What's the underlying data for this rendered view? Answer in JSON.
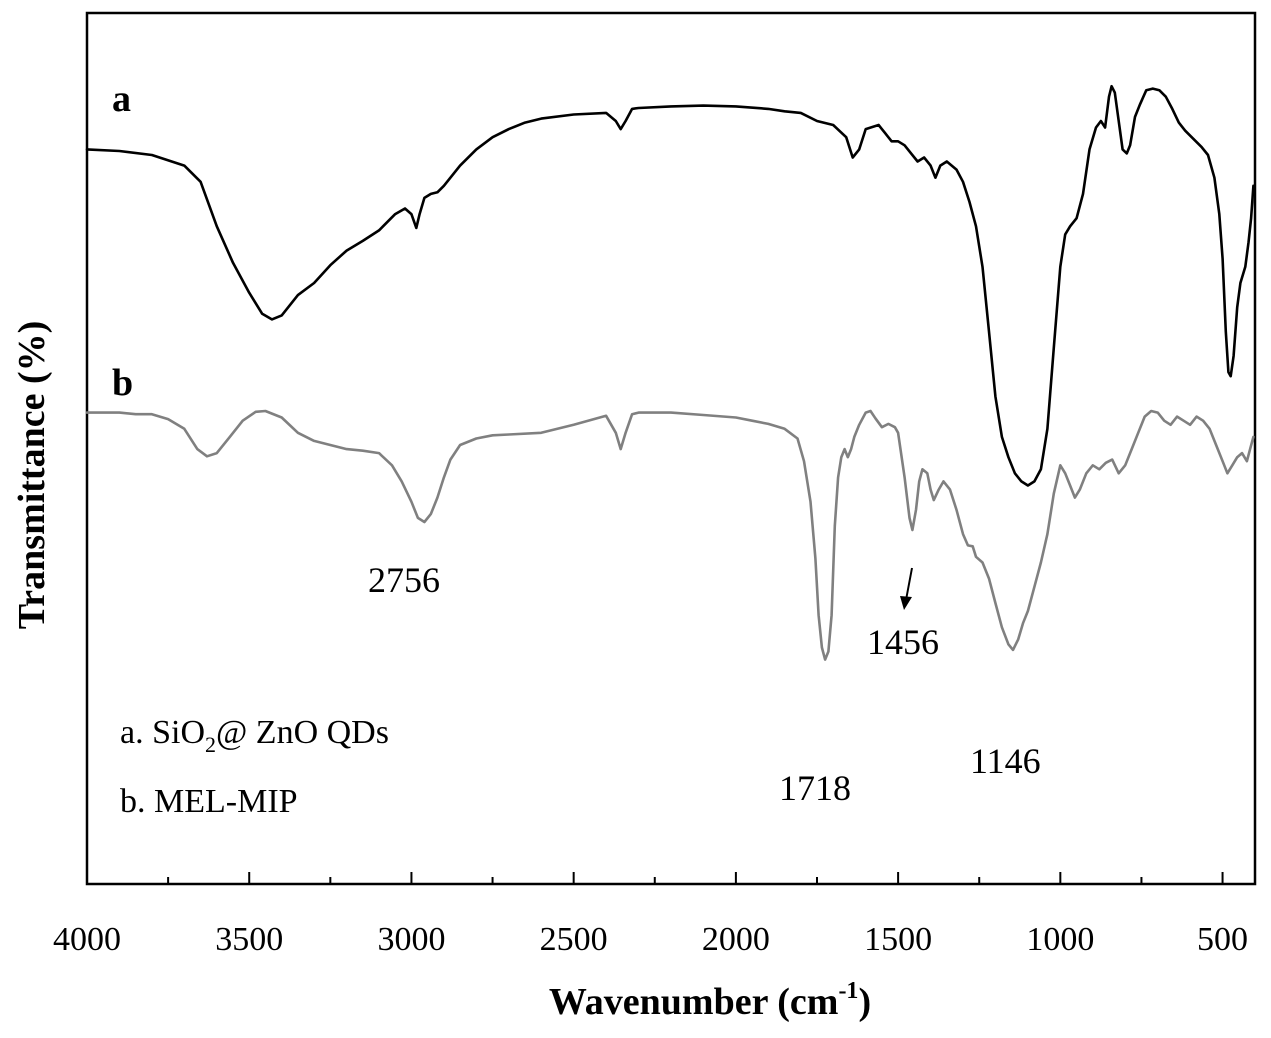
{
  "chart_data": {
    "type": "line",
    "xlabel": "Wavenumber (cm",
    "xlabel_sup": "-1",
    "xlabel_close": ")",
    "ylabel": "Transmittance (%)",
    "xlim": [
      4000,
      400
    ],
    "x_reversed": true,
    "ylim": [
      0,
      100
    ],
    "x_ticks": [
      4000,
      3500,
      3000,
      2500,
      2000,
      1500,
      1000,
      500
    ],
    "y_ticks_labeled": false,
    "grid": false,
    "series": [
      {
        "tag": "a",
        "color": "#000000",
        "points": [
          [
            4000,
            86.5
          ],
          [
            3900,
            86.3
          ],
          [
            3800,
            85.8
          ],
          [
            3700,
            84.5
          ],
          [
            3650,
            82.5
          ],
          [
            3600,
            77
          ],
          [
            3550,
            72.5
          ],
          [
            3500,
            68.8
          ],
          [
            3460,
            66.2
          ],
          [
            3430,
            65.5
          ],
          [
            3400,
            66
          ],
          [
            3350,
            68.5
          ],
          [
            3300,
            70
          ],
          [
            3250,
            72.2
          ],
          [
            3200,
            74
          ],
          [
            3150,
            75.2
          ],
          [
            3100,
            76.5
          ],
          [
            3050,
            78.5
          ],
          [
            3020,
            79.2
          ],
          [
            3000,
            78.5
          ],
          [
            2985,
            76.8
          ],
          [
            2975,
            78.5
          ],
          [
            2960,
            80.5
          ],
          [
            2940,
            81
          ],
          [
            2920,
            81.2
          ],
          [
            2900,
            82
          ],
          [
            2880,
            83
          ],
          [
            2850,
            84.5
          ],
          [
            2800,
            86.5
          ],
          [
            2750,
            88
          ],
          [
            2700,
            89
          ],
          [
            2650,
            89.8
          ],
          [
            2600,
            90.3
          ],
          [
            2500,
            90.8
          ],
          [
            2400,
            91
          ],
          [
            2370,
            90
          ],
          [
            2355,
            89
          ],
          [
            2340,
            90
          ],
          [
            2320,
            91.5
          ],
          [
            2300,
            91.6
          ],
          [
            2200,
            91.8
          ],
          [
            2100,
            91.9
          ],
          [
            2000,
            91.8
          ],
          [
            1900,
            91.5
          ],
          [
            1850,
            91.2
          ],
          [
            1800,
            91
          ],
          [
            1750,
            90
          ],
          [
            1700,
            89.5
          ],
          [
            1660,
            88
          ],
          [
            1640,
            85.5
          ],
          [
            1620,
            86.5
          ],
          [
            1600,
            89
          ],
          [
            1560,
            89.5
          ],
          [
            1540,
            88.5
          ],
          [
            1520,
            87.5
          ],
          [
            1500,
            87.5
          ],
          [
            1480,
            87
          ],
          [
            1460,
            86
          ],
          [
            1440,
            85
          ],
          [
            1420,
            85.5
          ],
          [
            1400,
            84.5
          ],
          [
            1385,
            83
          ],
          [
            1370,
            84.5
          ],
          [
            1350,
            85
          ],
          [
            1320,
            84
          ],
          [
            1300,
            82.5
          ],
          [
            1280,
            80
          ],
          [
            1260,
            77
          ],
          [
            1240,
            72
          ],
          [
            1220,
            64
          ],
          [
            1200,
            56
          ],
          [
            1180,
            51
          ],
          [
            1160,
            48.5
          ],
          [
            1140,
            46.5
          ],
          [
            1120,
            45.5
          ],
          [
            1100,
            45
          ],
          [
            1080,
            45.5
          ],
          [
            1060,
            47
          ],
          [
            1040,
            52
          ],
          [
            1020,
            62
          ],
          [
            1000,
            72
          ],
          [
            985,
            76
          ],
          [
            970,
            77
          ],
          [
            950,
            78
          ],
          [
            930,
            81
          ],
          [
            910,
            86.5
          ],
          [
            890,
            89.2
          ],
          [
            875,
            90
          ],
          [
            862,
            89.2
          ],
          [
            850,
            93
          ],
          [
            842,
            94.3
          ],
          [
            832,
            93.5
          ],
          [
            820,
            90
          ],
          [
            808,
            86.5
          ],
          [
            795,
            86
          ],
          [
            785,
            87
          ],
          [
            770,
            90.5
          ],
          [
            755,
            92
          ],
          [
            735,
            93.8
          ],
          [
            715,
            94
          ],
          [
            695,
            93.8
          ],
          [
            675,
            93
          ],
          [
            655,
            91.5
          ],
          [
            635,
            89.8
          ],
          [
            615,
            88.8
          ],
          [
            595,
            88
          ],
          [
            565,
            86.8
          ],
          [
            545,
            85.8
          ],
          [
            525,
            83
          ],
          [
            510,
            78.5
          ],
          [
            500,
            73
          ],
          [
            490,
            64
          ],
          [
            482,
            59
          ],
          [
            475,
            58.5
          ],
          [
            466,
            61
          ],
          [
            455,
            67
          ],
          [
            445,
            70
          ],
          [
            430,
            72
          ],
          [
            420,
            75
          ],
          [
            412,
            78
          ],
          [
            405,
            82
          ]
        ]
      },
      {
        "tag": "b",
        "color": "#808080",
        "points": [
          [
            4000,
            54
          ],
          [
            3950,
            54
          ],
          [
            3900,
            54
          ],
          [
            3850,
            53.8
          ],
          [
            3800,
            53.8
          ],
          [
            3750,
            53.2
          ],
          [
            3700,
            52
          ],
          [
            3660,
            49.5
          ],
          [
            3630,
            48.6
          ],
          [
            3600,
            49
          ],
          [
            3560,
            51
          ],
          [
            3520,
            53
          ],
          [
            3480,
            54.1
          ],
          [
            3450,
            54.2
          ],
          [
            3400,
            53.4
          ],
          [
            3350,
            51.5
          ],
          [
            3300,
            50.5
          ],
          [
            3250,
            50
          ],
          [
            3200,
            49.5
          ],
          [
            3150,
            49.3
          ],
          [
            3100,
            49
          ],
          [
            3060,
            47.5
          ],
          [
            3030,
            45.5
          ],
          [
            3000,
            43
          ],
          [
            2980,
            41
          ],
          [
            2960,
            40.5
          ],
          [
            2940,
            41.5
          ],
          [
            2920,
            43.5
          ],
          [
            2900,
            46
          ],
          [
            2880,
            48.2
          ],
          [
            2850,
            50
          ],
          [
            2800,
            50.8
          ],
          [
            2750,
            51.2
          ],
          [
            2700,
            51.3
          ],
          [
            2600,
            51.5
          ],
          [
            2500,
            52.5
          ],
          [
            2400,
            53.6
          ],
          [
            2370,
            51.5
          ],
          [
            2355,
            49.5
          ],
          [
            2340,
            51.5
          ],
          [
            2320,
            53.8
          ],
          [
            2300,
            54
          ],
          [
            2200,
            54
          ],
          [
            2100,
            53.7
          ],
          [
            2000,
            53.4
          ],
          [
            1950,
            53
          ],
          [
            1900,
            52.6
          ],
          [
            1850,
            52
          ],
          [
            1810,
            50.8
          ],
          [
            1790,
            48
          ],
          [
            1770,
            43
          ],
          [
            1755,
            36
          ],
          [
            1745,
            29
          ],
          [
            1735,
            25
          ],
          [
            1725,
            23.5
          ],
          [
            1715,
            24.5
          ],
          [
            1705,
            29
          ],
          [
            1695,
            40
          ],
          [
            1685,
            46
          ],
          [
            1675,
            48.5
          ],
          [
            1665,
            49.5
          ],
          [
            1655,
            48.5
          ],
          [
            1645,
            49.5
          ],
          [
            1635,
            51
          ],
          [
            1620,
            52.5
          ],
          [
            1600,
            54
          ],
          [
            1585,
            54.2
          ],
          [
            1570,
            53.3
          ],
          [
            1550,
            52.2
          ],
          [
            1530,
            52.6
          ],
          [
            1510,
            52.2
          ],
          [
            1500,
            51.5
          ],
          [
            1480,
            46
          ],
          [
            1465,
            41
          ],
          [
            1456,
            39.5
          ],
          [
            1445,
            42
          ],
          [
            1435,
            45.5
          ],
          [
            1425,
            47
          ],
          [
            1410,
            46.5
          ],
          [
            1400,
            44.5
          ],
          [
            1390,
            43.2
          ],
          [
            1375,
            44.5
          ],
          [
            1360,
            45.5
          ],
          [
            1340,
            44.5
          ],
          [
            1320,
            42
          ],
          [
            1300,
            39
          ],
          [
            1285,
            37.6
          ],
          [
            1270,
            37.5
          ],
          [
            1260,
            36.2
          ],
          [
            1240,
            35.5
          ],
          [
            1220,
            33.5
          ],
          [
            1200,
            30.5
          ],
          [
            1180,
            27.5
          ],
          [
            1160,
            25.4
          ],
          [
            1146,
            24.7
          ],
          [
            1130,
            26
          ],
          [
            1115,
            28
          ],
          [
            1100,
            29.5
          ],
          [
            1080,
            32.5
          ],
          [
            1060,
            35.5
          ],
          [
            1040,
            39
          ],
          [
            1020,
            44
          ],
          [
            1000,
            47.5
          ],
          [
            985,
            46.5
          ],
          [
            970,
            45
          ],
          [
            955,
            43.5
          ],
          [
            940,
            44.5
          ],
          [
            920,
            46.5
          ],
          [
            900,
            47.5
          ],
          [
            880,
            47
          ],
          [
            860,
            47.8
          ],
          [
            840,
            48.2
          ],
          [
            820,
            46.5
          ],
          [
            800,
            47.5
          ],
          [
            780,
            49.5
          ],
          [
            760,
            51.5
          ],
          [
            740,
            53.5
          ],
          [
            720,
            54.2
          ],
          [
            700,
            54
          ],
          [
            680,
            53
          ],
          [
            660,
            52.5
          ],
          [
            640,
            53.5
          ],
          [
            620,
            53
          ],
          [
            600,
            52.5
          ],
          [
            580,
            53.5
          ],
          [
            560,
            53
          ],
          [
            540,
            52
          ],
          [
            520,
            50
          ],
          [
            500,
            48
          ],
          [
            485,
            46.5
          ],
          [
            470,
            47.5
          ],
          [
            455,
            48.5
          ],
          [
            440,
            49
          ],
          [
            425,
            48
          ],
          [
            415,
            49.5
          ],
          [
            405,
            51
          ]
        ]
      }
    ],
    "annotations": [
      "2756",
      "1456",
      "1718",
      "1146"
    ],
    "legend": {
      "placement": "lower-left",
      "entry_a_prefix": "a. SiO",
      "entry_a_sub": "2",
      "entry_a_suffix": "@ ZnO QDs",
      "entry_b": "b.  MEL-MIP"
    }
  }
}
